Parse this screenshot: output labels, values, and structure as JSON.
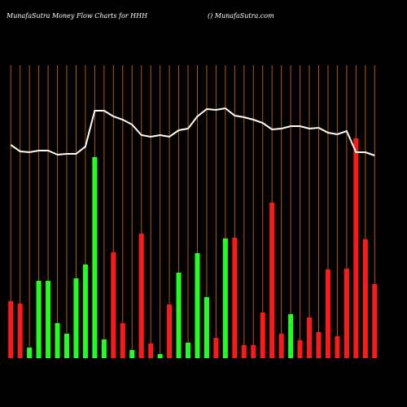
{
  "chart_data": {
    "type": "bar",
    "title": "MunafaSutra  Money Flow  Charts for HHH",
    "subtitle": "() MunafaSutra.com",
    "categories": [
      null,
      null,
      null,
      null,
      null,
      null,
      null,
      null,
      null,
      null,
      null,
      null,
      null,
      null,
      null,
      null,
      null,
      null,
      null,
      null,
      null,
      null,
      null,
      null,
      null,
      null,
      null,
      null,
      null,
      null,
      null,
      null,
      null,
      null,
      null,
      null,
      null,
      null,
      null,
      null
    ],
    "values": [
      70,
      67,
      13,
      95,
      95,
      43,
      30,
      98,
      115,
      247,
      23,
      130,
      43,
      10,
      153,
      18,
      5,
      66,
      105,
      19,
      129,
      75,
      25,
      147,
      148,
      16,
      16,
      56,
      191,
      30,
      54,
      22,
      50,
      32,
      109,
      27,
      110,
      270,
      146,
      91
    ],
    "colors": [
      "#ff1a1a",
      "#ff1a1a",
      "#22ff22",
      "#22ff22",
      "#22ff22",
      "#22ff22",
      "#22ff22",
      "#22ff22",
      "#22ff22",
      "#22ff22",
      "#22ff22",
      "#ff1a1a",
      "#ff1a1a",
      "#22ff22",
      "#ff1a1a",
      "#ff1a1a",
      "#22ff22",
      "#ff1a1a",
      "#22ff22",
      "#22ff22",
      "#22ff22",
      "#22ff22",
      "#ff1a1a",
      "#22ff22",
      "#ff1a1a",
      "#ff1a1a",
      "#ff1a1a",
      "#ff1a1a",
      "#ff1a1a",
      "#ff1a1a",
      "#22ff22",
      "#ff1a1a",
      "#ff1a1a",
      "#ff1a1a",
      "#ff1a1a",
      "#ff1a1a",
      "#ff1a1a",
      "#ff1a1a",
      "#ff1a1a",
      "#ff1a1a"
    ],
    "line": {
      "color": "#ffffff",
      "values": [
        262,
        254,
        253,
        255,
        255,
        250,
        251,
        251,
        260,
        304,
        304,
        297,
        293,
        287,
        274,
        272,
        274,
        272,
        280,
        282,
        297,
        306,
        305,
        307,
        298,
        296,
        293,
        289,
        281,
        282,
        285,
        285,
        282,
        283,
        277,
        275,
        279,
        253,
        253,
        249
      ]
    },
    "ylim": [
      0,
      360
    ],
    "grid": true,
    "grid_color": "#b35a00"
  }
}
